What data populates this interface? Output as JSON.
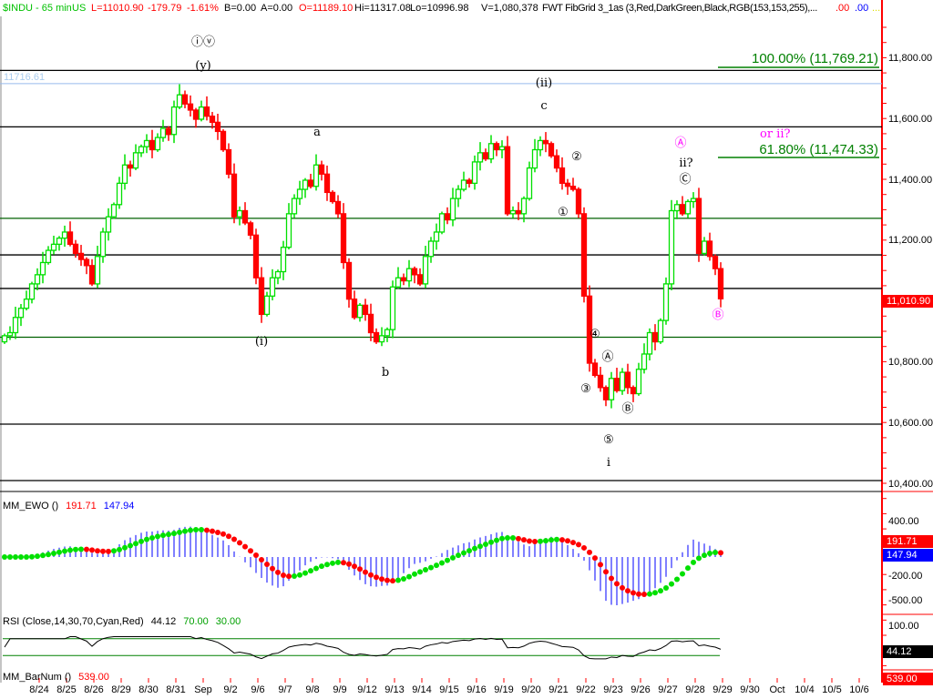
{
  "header": {
    "symbol": "$INDU - 65 min",
    "exchange": "US",
    "last": "L=11010.90",
    "change": "-179.79",
    "change_pct": "-1.61%",
    "bid": "B=0.00",
    "ask": "A=0.00",
    "open": "O=11189.10",
    "high": "Hi=11317.08",
    "low": "Lo=10996.98",
    "volume": "V=1,080,378",
    "study": "FWT FibGrid 3_1as (3,Red,DarkGreen,Black,RGB(153,153,255),...",
    "val1": ".00",
    "val2": ".00",
    "val3": "..."
  },
  "colors": {
    "up": "#00e000",
    "down": "#ff0000",
    "axis": "#ff0000",
    "fib": "#008000",
    "magenta": "#ff00ff",
    "lightblue": "#99bbee"
  },
  "price_axis": {
    "labels": [
      "11,800.00",
      "11,600.00",
      "11,400.00",
      "11,200.00",
      "10,800.00",
      "10,600.00",
      "10,400.00"
    ],
    "last_badge": "11,010.90"
  },
  "high_marker": "11716.61",
  "fib_labels": {
    "f100": "100.00% (11,769.21)",
    "f618": "61.80% (11,474.33)",
    "note": "or  ii?"
  },
  "waves": {
    "iv": "ⓘⓥ",
    "y": "(y)",
    "ii_paren": "(ii)",
    "c": "c",
    "a": "a",
    "i_paren": "(i)",
    "b": "b",
    "w2": "②",
    "w1": "①",
    "w4": "④",
    "wA": "Ⓐ",
    "w3": "③",
    "wB": "Ⓑ",
    "w5": "⑤",
    "i": "i",
    "mA": "Ⓐ",
    "ii_q": "ii?",
    "wC": "Ⓒ",
    "mB": "Ⓑ"
  },
  "ewo": {
    "title": "MM_EWO ()",
    "v1": "191.71",
    "v2": "147.94",
    "axis": [
      "400.00",
      "-200.00",
      "-500.00"
    ],
    "badge": "191.71",
    "badge2": "147.94"
  },
  "rsi": {
    "title": "RSI (Close,14,30,70,Cyan,Red)",
    "value": "44.12",
    "ob": "70.00",
    "os": "30.00",
    "axis": [
      "100.00"
    ],
    "badge": "44.12"
  },
  "barnum": {
    "title": "MM_BarNum ()",
    "value": "539.00",
    "badge": "539.00"
  },
  "chart_data": {
    "type": "candlestick",
    "title": "$INDU - 65 min",
    "x_labels": [
      "8/24",
      "8/25",
      "8/26",
      "8/29",
      "8/30",
      "8/31",
      "Sep",
      "9/2",
      "9/6",
      "9/7",
      "9/8",
      "9/9",
      "9/12",
      "9/13",
      "9/14",
      "9/15",
      "9/16",
      "9/19",
      "9/20",
      "9/21",
      "9/22",
      "9/23",
      "9/26",
      "9/27",
      "9/28",
      "9/29",
      "9/30",
      "Oct",
      "10/4",
      "10/5",
      "10/6"
    ],
    "ylim": [
      10360,
      11900
    ],
    "horizontal_levels": {
      "black": [
        11760,
        11575,
        11155,
        11045,
        10600,
        10415
      ],
      "green": [
        11275,
        10885
      ],
      "lightblue": 11716.61
    },
    "closes": [
      10890,
      10900,
      10950,
      10980,
      11010,
      11060,
      11090,
      11130,
      11170,
      11190,
      11210,
      11230,
      11190,
      11160,
      11140,
      11120,
      11060,
      11150,
      11230,
      11280,
      11320,
      11390,
      11450,
      11440,
      11490,
      11510,
      11530,
      11500,
      11540,
      11570,
      11550,
      11640,
      11680,
      11650,
      11630,
      11600,
      11640,
      11610,
      11590,
      11560,
      11500,
      11420,
      11280,
      11300,
      11260,
      11220,
      11080,
      10960,
      11020,
      11080,
      11100,
      11180,
      11290,
      11340,
      11370,
      11400,
      11380,
      11450,
      11420,
      11360,
      11330,
      11290,
      11130,
      11010,
      10950,
      10990,
      10960,
      10900,
      10870,
      10890,
      10910,
      11050,
      11080,
      11070,
      11110,
      11090,
      11060,
      11150,
      11200,
      11230,
      11290,
      11270,
      11340,
      11370,
      11400,
      11390,
      11460,
      11490,
      11470,
      11520,
      11500,
      11510,
      11290,
      11300,
      11290,
      11340,
      11440,
      11500,
      11530,
      11520,
      11480,
      11440,
      11390,
      11380,
      11370,
      11290,
      11020,
      10800,
      10760,
      10720,
      10680,
      10750,
      10710,
      10770,
      10720,
      10700,
      10780,
      10830,
      10900,
      10870,
      10940,
      11060,
      11300,
      11320,
      11290,
      11330,
      11340,
      11160,
      11200,
      11150,
      11110,
      11011
    ]
  }
}
